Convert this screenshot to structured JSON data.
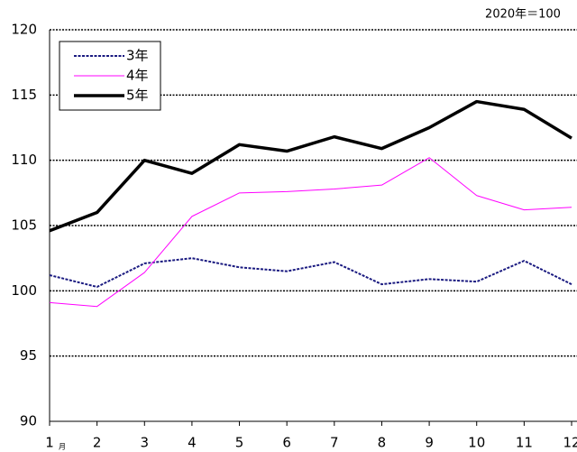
{
  "chart_data": {
    "type": "line",
    "annotation": "2020年＝100",
    "x_label": "月",
    "categories": [
      "1",
      "2",
      "3",
      "4",
      "5",
      "6",
      "7",
      "8",
      "9",
      "10",
      "11",
      "12"
    ],
    "series": [
      {
        "name": "3年",
        "color": "#1a1a80",
        "values": [
          101.2,
          100.3,
          102.1,
          102.5,
          101.8,
          101.5,
          102.2,
          100.5,
          100.9,
          100.7,
          102.3,
          100.5
        ]
      },
      {
        "name": "4年",
        "color": "#ff00ff",
        "values": [
          99.1,
          98.8,
          101.4,
          105.7,
          107.5,
          107.6,
          107.8,
          108.1,
          110.2,
          107.3,
          106.2,
          106.4
        ]
      },
      {
        "name": "5年",
        "color": "#000000",
        "values": [
          104.6,
          106.0,
          110.0,
          109.0,
          111.2,
          110.7,
          111.8,
          110.9,
          112.5,
          114.5,
          113.9,
          111.7
        ]
      }
    ],
    "ylim": [
      90,
      120
    ],
    "yticks": [
      90,
      95,
      100,
      105,
      110,
      115,
      120
    ],
    "grid": true,
    "legend": "top-left"
  }
}
